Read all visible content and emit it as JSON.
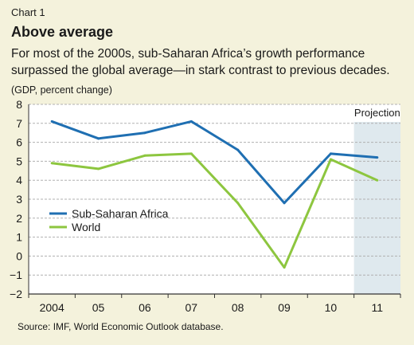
{
  "header": {
    "chart_label": "Chart 1",
    "title": "Above average",
    "subtitle": "For most of the 2000s, sub-Saharan Africa’s growth performance surpassed the global average—in stark contrast to previous decades.",
    "units": "(GDP, percent change)"
  },
  "footer": {
    "source": "Source: IMF, World Economic Outlook database."
  },
  "colors": {
    "background": "#f4f2dc",
    "plot_area": "#ffffff",
    "projection_shade": "#dfe9ee",
    "grid": "#b0b0b0",
    "ssa": "#1f6fb2",
    "world": "#8dc63f"
  },
  "chart_data": {
    "type": "line",
    "categories": [
      "2004",
      "05",
      "06",
      "07",
      "08",
      "09",
      "10",
      "11"
    ],
    "series": [
      {
        "name": "Sub-Saharan Africa",
        "color": "#1f6fb2",
        "values": [
          7.1,
          6.2,
          6.5,
          7.1,
          5.6,
          2.8,
          5.4,
          5.2
        ]
      },
      {
        "name": "World",
        "color": "#8dc63f",
        "values": [
          4.9,
          4.6,
          5.3,
          5.4,
          2.8,
          -0.6,
          5.1,
          4.0
        ]
      }
    ],
    "ylim": [
      -2,
      8
    ],
    "yticks": [
      "−2",
      "−1",
      "0",
      "1",
      "2",
      "3",
      "4",
      "5",
      "6",
      "7",
      "8"
    ],
    "grid": true,
    "legend": "left-middle",
    "projection": {
      "label": "Projection",
      "from_category": "11"
    },
    "title": "Above average",
    "ylabel": "(GDP, percent change)",
    "xlabel": ""
  }
}
